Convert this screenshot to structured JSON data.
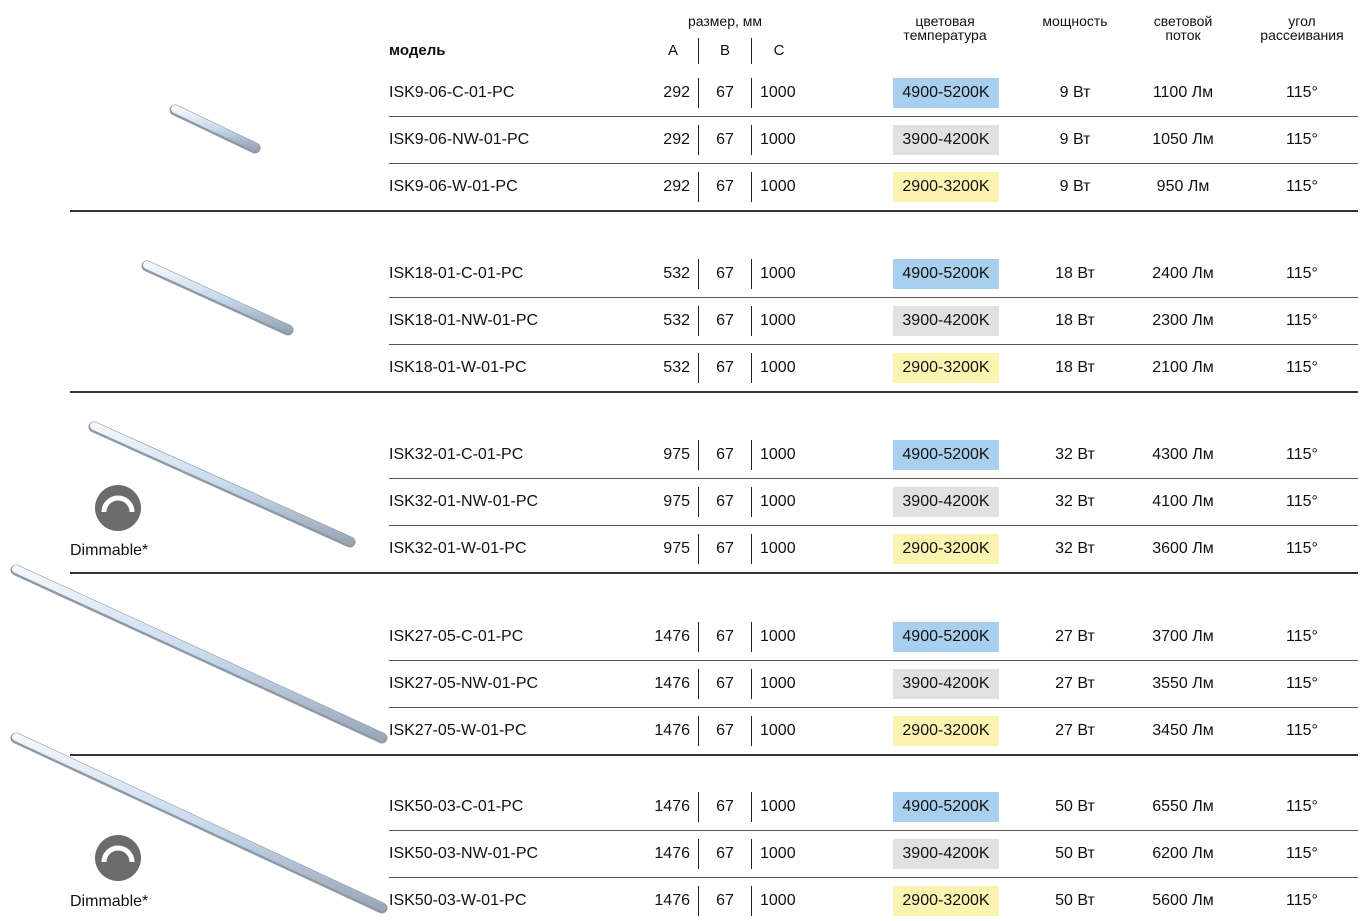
{
  "headers": {
    "model": "модель",
    "size": "размер, мм",
    "a": "A",
    "b": "B",
    "c": "C",
    "color_temp_line1": "цветовая",
    "color_temp_line2": "температура",
    "power": "мощность",
    "flux_line1": "световой",
    "flux_line2": "поток",
    "angle_line1": "угол",
    "angle_line2": "рассеивания"
  },
  "badge_colors": {
    "4900-5200K": "#a8d0ee",
    "3900-4200K": "#e1e1e1",
    "2900-3200K": "#fbf3b0"
  },
  "dimmable_label": "Dimmable*",
  "groups": [
    {
      "lamp_icon": "linear-lamp-icon",
      "dimmable": false,
      "rows": [
        {
          "model": "ISK9-06-C-01-PC",
          "a": "292",
          "b": "67",
          "c": "1000",
          "temp": "4900-5200K",
          "power": "9 Вт",
          "flux": "1100 Лм",
          "angle": "115°"
        },
        {
          "model": "ISK9-06-NW-01-PC",
          "a": "292",
          "b": "67",
          "c": "1000",
          "temp": "3900-4200K",
          "power": "9 Вт",
          "flux": "1050 Лм",
          "angle": "115°"
        },
        {
          "model": "ISK9-06-W-01-PC",
          "a": "292",
          "b": "67",
          "c": "1000",
          "temp": "2900-3200K",
          "power": "9 Вт",
          "flux": "950 Лм",
          "angle": "115°"
        }
      ]
    },
    {
      "lamp_icon": "linear-lamp-icon",
      "dimmable": false,
      "rows": [
        {
          "model": "ISK18-01-C-01-PC",
          "a": "532",
          "b": "67",
          "c": "1000",
          "temp": "4900-5200K",
          "power": "18 Вт",
          "flux": "2400 Лм",
          "angle": "115°"
        },
        {
          "model": "ISK18-01-NW-01-PC",
          "a": "532",
          "b": "67",
          "c": "1000",
          "temp": "3900-4200K",
          "power": "18 Вт",
          "flux": "2300 Лм",
          "angle": "115°"
        },
        {
          "model": "ISK18-01-W-01-PC",
          "a": "532",
          "b": "67",
          "c": "1000",
          "temp": "2900-3200K",
          "power": "18 Вт",
          "flux": "2100 Лм",
          "angle": "115°"
        }
      ]
    },
    {
      "lamp_icon": "linear-lamp-icon",
      "dimmable": true,
      "rows": [
        {
          "model": "ISK32-01-C-01-PC",
          "a": "975",
          "b": "67",
          "c": "1000",
          "temp": "4900-5200K",
          "power": "32 Вт",
          "flux": "4300 Лм",
          "angle": "115°"
        },
        {
          "model": "ISK32-01-NW-01-PC",
          "a": "975",
          "b": "67",
          "c": "1000",
          "temp": "3900-4200K",
          "power": "32 Вт",
          "flux": "4100 Лм",
          "angle": "115°"
        },
        {
          "model": "ISK32-01-W-01-PC",
          "a": "975",
          "b": "67",
          "c": "1000",
          "temp": "2900-3200K",
          "power": "32 Вт",
          "flux": "3600 Лм",
          "angle": "115°"
        }
      ]
    },
    {
      "lamp_icon": "linear-lamp-icon",
      "dimmable": false,
      "rows": [
        {
          "model": "ISK27-05-C-01-PC",
          "a": "1476",
          "b": "67",
          "c": "1000",
          "temp": "4900-5200K",
          "power": "27 Вт",
          "flux": "3700 Лм",
          "angle": "115°"
        },
        {
          "model": "ISK27-05-NW-01-PC",
          "a": "1476",
          "b": "67",
          "c": "1000",
          "temp": "3900-4200K",
          "power": "27 Вт",
          "flux": "3550 Лм",
          "angle": "115°"
        },
        {
          "model": "ISK27-05-W-01-PC",
          "a": "1476",
          "b": "67",
          "c": "1000",
          "temp": "2900-3200K",
          "power": "27 Вт",
          "flux": "3450 Лм",
          "angle": "115°"
        }
      ]
    },
    {
      "lamp_icon": "linear-lamp-icon",
      "dimmable": true,
      "rows": [
        {
          "model": "ISK50-03-C-01-PC",
          "a": "1476",
          "b": "67",
          "c": "1000",
          "temp": "4900-5200K",
          "power": "50 Вт",
          "flux": "6550 Лм",
          "angle": "115°"
        },
        {
          "model": "ISK50-03-NW-01-PC",
          "a": "1476",
          "b": "67",
          "c": "1000",
          "temp": "3900-4200K",
          "power": "50 Вт",
          "flux": "6200 Лм",
          "angle": "115°"
        },
        {
          "model": "ISK50-03-W-01-PC",
          "a": "1476",
          "b": "67",
          "c": "1000",
          "temp": "2900-3200K",
          "power": "50 Вт",
          "flux": "5600 Лм",
          "angle": "115°"
        }
      ]
    }
  ]
}
